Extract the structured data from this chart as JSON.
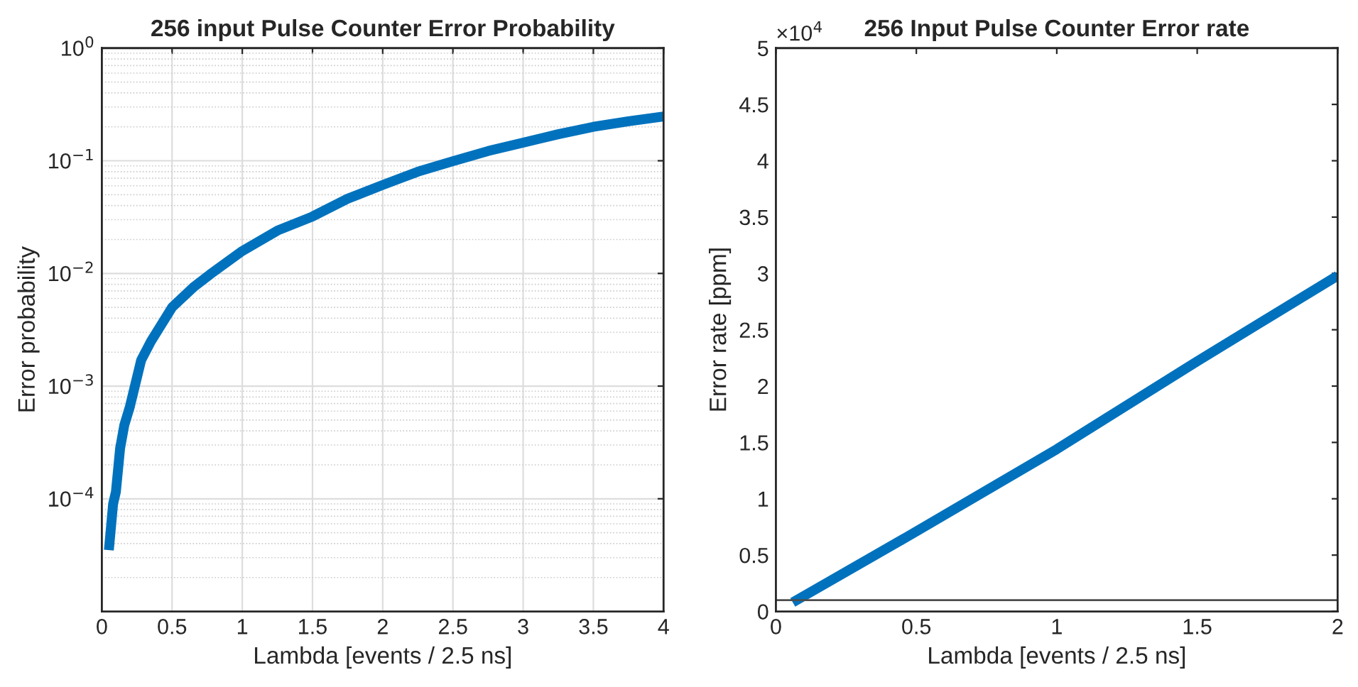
{
  "chart_data": [
    {
      "type": "line",
      "title": "256 input Pulse Counter Error Probability",
      "xlabel": "Lambda [events / 2.5 ns]",
      "ylabel": "Error probability",
      "log": "y",
      "grid": true,
      "xlim": [
        0,
        4
      ],
      "xticks": [
        0,
        0.5,
        1,
        1.5,
        2,
        2.5,
        3,
        3.5,
        4
      ],
      "ylim": [
        1e-05,
        1
      ],
      "yticks": [
        {
          "value": 0.0001,
          "label": "10$^{−4}$"
        },
        {
          "value": 0.001,
          "label": "10$^{−3}$"
        },
        {
          "value": 0.01,
          "label": "10$^{−2}$"
        },
        {
          "value": 0.1,
          "label": "10$^{−1}$"
        },
        {
          "value": 1,
          "label": "10$^{0}$"
        }
      ],
      "series": [
        {
          "color": "#0072bd",
          "x": [
            0.05,
            0.08,
            0.1,
            0.13,
            0.16,
            0.2,
            0.28,
            0.35,
            0.5,
            0.65,
            0.77,
            1.0,
            1.25,
            1.5,
            1.75,
            2.0,
            2.25,
            2.5,
            2.75,
            3.0,
            3.25,
            3.5,
            3.75,
            4.0
          ],
          "values": [
            3.5e-05,
            9e-05,
            0.000115,
            0.00028,
            0.00045,
            0.00066,
            0.0017,
            0.0025,
            0.005,
            0.0075,
            0.0098,
            0.0158,
            0.024,
            0.032,
            0.046,
            0.061,
            0.08,
            0.099,
            0.122,
            0.145,
            0.172,
            0.2,
            0.224,
            0.247
          ]
        }
      ]
    },
    {
      "type": "line",
      "title": "256 Input Pulse Counter Error rate",
      "xlabel": "Lambda [events / 2.5 ns]",
      "ylabel": "Error rate [ppm]",
      "grid": false,
      "annotations": [
        "×10$^{4}$"
      ],
      "xlim": [
        0,
        2
      ],
      "xticks": [
        0,
        0.5,
        1,
        1.5,
        2
      ],
      "ylim": [
        0,
        5
      ],
      "yticks": [
        0,
        0.5,
        1,
        1.5,
        2,
        2.5,
        3,
        3.5,
        4,
        4.5,
        5
      ],
      "ref_lines": [
        {
          "axis": "y",
          "value": 0.1,
          "color": "#4d4d4d"
        }
      ],
      "series": [
        {
          "color": "#0072bd",
          "x": [
            0.06,
            0.5,
            1.0,
            1.5,
            2.0
          ],
          "values": [
            0.08,
            0.71,
            1.44,
            2.22,
            2.98
          ]
        }
      ]
    }
  ]
}
